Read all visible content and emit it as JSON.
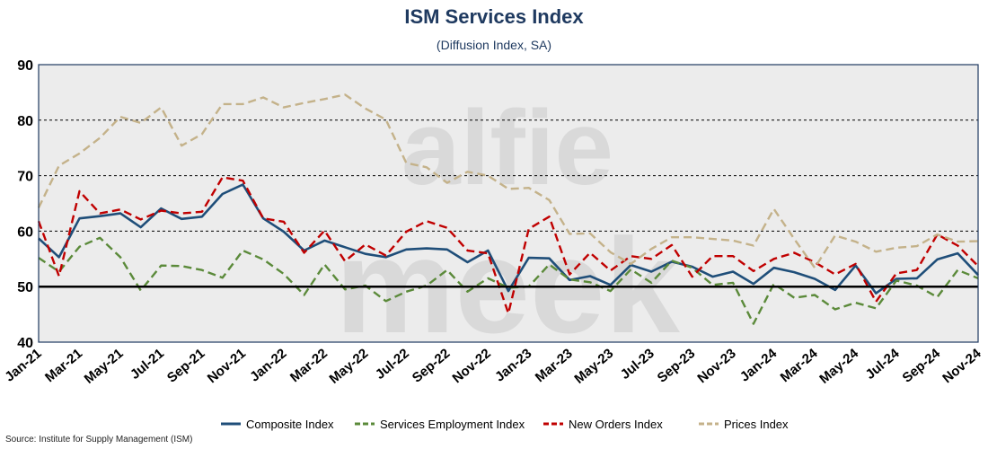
{
  "chart_data": {
    "type": "line",
    "title": "ISM Services Index",
    "subtitle": "(Diffusion Index, SA)",
    "source": "Source: Institute for Supply Management (ISM)",
    "watermark": "alfie meek",
    "ylim": [
      40,
      90
    ],
    "yticks": [
      40,
      50,
      60,
      70,
      80,
      90
    ],
    "dashed_gridlines": [
      60,
      70,
      80
    ],
    "baseline": 50,
    "grid": true,
    "legend_position": "bottom",
    "x": [
      "Jan-21",
      "Feb-21",
      "Mar-21",
      "Apr-21",
      "May-21",
      "Jun-21",
      "Jul-21",
      "Aug-21",
      "Sep-21",
      "Oct-21",
      "Nov-21",
      "Dec-21",
      "Jan-22",
      "Feb-22",
      "Mar-22",
      "Apr-22",
      "May-22",
      "Jun-22",
      "Jul-22",
      "Aug-22",
      "Sep-22",
      "Oct-22",
      "Nov-22",
      "Dec-22",
      "Jan-23",
      "Feb-23",
      "Mar-23",
      "Apr-23",
      "May-23",
      "Jun-23",
      "Jul-23",
      "Aug-23",
      "Sep-23",
      "Oct-23",
      "Nov-23",
      "Dec-23",
      "Jan-24",
      "Feb-24",
      "Mar-24",
      "Apr-24",
      "May-24",
      "Jun-24",
      "Jul-24",
      "Aug-24",
      "Sep-24",
      "Oct-24",
      "Nov-24"
    ],
    "xtick_labels": [
      "Jan-21",
      "Mar-21",
      "May-21",
      "Jul-21",
      "Sep-21",
      "Nov-21",
      "Jan-22",
      "Mar-22",
      "May-22",
      "Jul-22",
      "Sep-22",
      "Nov-22",
      "Jan-23",
      "Mar-23",
      "May-23",
      "Jul-23",
      "Sep-23",
      "Nov-23",
      "Jan-24",
      "Mar-24",
      "May-24",
      "Jul-24",
      "Sep-24",
      "Nov-24"
    ],
    "series": [
      {
        "name": "Composite Index",
        "color": "#1f4e79",
        "dash": "solid",
        "values": [
          58.7,
          55.3,
          62.3,
          62.7,
          63.2,
          60.7,
          64.1,
          62.2,
          62.6,
          66.7,
          68.4,
          62.3,
          59.9,
          56.5,
          58.3,
          57.1,
          55.9,
          55.3,
          56.7,
          56.9,
          56.7,
          54.4,
          56.5,
          49.2,
          55.2,
          55.1,
          51.2,
          51.9,
          50.3,
          53.9,
          52.7,
          54.5,
          53.6,
          51.8,
          52.7,
          50.5,
          53.4,
          52.6,
          51.4,
          49.4,
          53.8,
          48.8,
          51.4,
          51.5,
          54.9,
          56.0,
          52.1
        ]
      },
      {
        "name": "Services Employment Index",
        "color": "#5b8a3a",
        "dash": "dashed",
        "values": [
          55.2,
          52.7,
          57.2,
          58.8,
          55.3,
          49.3,
          53.8,
          53.7,
          53.0,
          51.6,
          56.5,
          54.9,
          52.3,
          48.5,
          54.0,
          49.5,
          50.2,
          47.4,
          49.1,
          50.2,
          53.0,
          49.1,
          51.5,
          49.8,
          50.0,
          54.0,
          51.3,
          50.8,
          49.2,
          53.1,
          50.7,
          54.7,
          53.4,
          50.3,
          50.7,
          43.3,
          50.5,
          48.0,
          48.5,
          45.9,
          47.1,
          46.1,
          51.1,
          50.2,
          48.1,
          53.0,
          51.5
        ]
      },
      {
        "name": "New Orders Index",
        "color": "#c00000",
        "dash": "dashed",
        "values": [
          61.8,
          51.9,
          67.2,
          63.2,
          63.9,
          62.1,
          63.7,
          63.2,
          63.5,
          69.7,
          69.1,
          62.3,
          61.7,
          56.1,
          60.1,
          54.6,
          57.6,
          55.6,
          59.9,
          61.8,
          60.6,
          56.5,
          56.0,
          45.2,
          60.4,
          62.6,
          52.2,
          56.1,
          52.9,
          55.5,
          55.0,
          57.5,
          51.8,
          55.5,
          55.5,
          52.8,
          55.0,
          56.1,
          54.4,
          52.2,
          54.1,
          47.3,
          52.4,
          53.0,
          59.4,
          57.4,
          53.7
        ]
      },
      {
        "name": "Prices Index",
        "color": "#c4b28a",
        "dash": "dashed",
        "values": [
          64.2,
          71.8,
          74.0,
          76.8,
          80.6,
          79.5,
          82.3,
          75.4,
          77.5,
          82.9,
          82.9,
          84.1,
          82.3,
          83.1,
          83.8,
          84.6,
          82.1,
          80.1,
          72.3,
          71.5,
          68.7,
          70.7,
          70.0,
          67.6,
          67.8,
          65.6,
          59.5,
          59.6,
          56.2,
          54.1,
          56.8,
          58.9,
          58.9,
          58.6,
          58.3,
          57.4,
          64.0,
          58.6,
          53.4,
          59.2,
          58.1,
          56.3,
          57.0,
          57.3,
          59.4,
          58.1,
          58.2
        ]
      }
    ]
  }
}
